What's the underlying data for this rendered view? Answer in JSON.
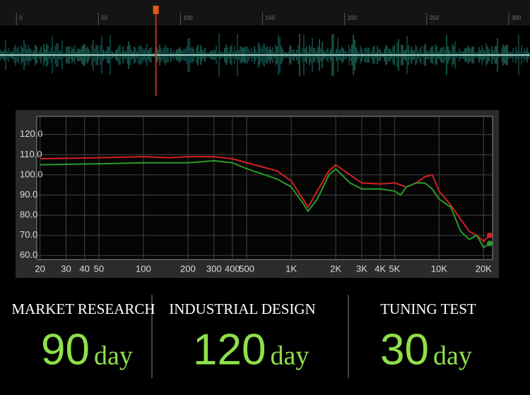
{
  "timeline": {
    "xlim": [
      -10,
      313
    ],
    "ticks": [
      0,
      50,
      100,
      150,
      200,
      250,
      300
    ],
    "marker": 85
  },
  "chart_data": {
    "type": "line",
    "x": [
      20,
      50,
      100,
      150,
      200,
      300,
      400,
      500,
      800,
      1000,
      1200,
      1300,
      1500,
      1800,
      2000,
      2500,
      3000,
      4000,
      5000,
      5500,
      6000,
      7000,
      8000,
      9000,
      10000,
      12000,
      14000,
      16000,
      18000,
      20000,
      22000
    ],
    "series": [
      {
        "color": "#d42020",
        "values": [
          108,
          108.5,
          109,
          108.5,
          109,
          109,
          108,
          106,
          102,
          97,
          88,
          84,
          92,
          102,
          105,
          100,
          96,
          95.5,
          96,
          95,
          94,
          96,
          99,
          100,
          92,
          85,
          78,
          72,
          70,
          67,
          70
        ]
      },
      {
        "color": "#2a9a2a",
        "values": [
          105,
          105.5,
          106,
          106,
          106,
          107,
          106,
          103,
          98,
          94,
          86,
          82,
          88,
          100,
          103,
          96,
          93,
          93,
          92,
          90,
          94,
          96,
          96,
          93,
          88,
          84,
          72,
          68,
          70,
          64,
          66
        ]
      }
    ],
    "xlog": true,
    "xlim": [
      19,
      23000
    ],
    "xticks": [
      20,
      30,
      40,
      50,
      100,
      200,
      300,
      400,
      500,
      {
        "value": 1000,
        "label": "1K"
      },
      {
        "value": 2000,
        "label": "2K"
      },
      {
        "value": 3000,
        "label": "3K"
      },
      {
        "value": 4000,
        "label": "4K"
      },
      {
        "value": 5000,
        "label": "5K"
      },
      {
        "value": 10000,
        "label": "10K"
      },
      {
        "value": 20000,
        "label": "20K"
      }
    ],
    "ylim": [
      58,
      129
    ],
    "yticks": [
      {
        "value": 60,
        "label": "60.0"
      },
      {
        "value": 70,
        "label": "70.0"
      },
      {
        "value": 80,
        "label": "80.0"
      },
      {
        "value": 90,
        "label": "90.0"
      },
      {
        "value": 100,
        "label": "100.0"
      },
      {
        "value": 110,
        "label": "110.0"
      },
      {
        "value": 120,
        "label": "120.0"
      }
    ],
    "grid": true
  },
  "stats": [
    {
      "label": "MARKET RESEARCH",
      "value": "90",
      "unit": "day"
    },
    {
      "label": "INDUSTRIAL DESIGN",
      "value": "120",
      "unit": "day"
    },
    {
      "label": "TUNING TEST",
      "value": "30",
      "unit": "day"
    }
  ]
}
